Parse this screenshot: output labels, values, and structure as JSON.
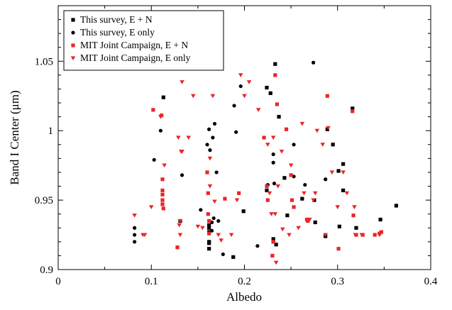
{
  "chart_data": {
    "type": "scatter",
    "title": "",
    "xlabel": "Albedo",
    "ylabel": "Band I Center (μm)",
    "xlim": [
      0,
      0.4
    ],
    "ylim": [
      0.9,
      1.09
    ],
    "x_ticks": [
      0,
      0.1,
      0.2,
      0.3,
      0.4
    ],
    "x_tick_labels": [
      "0",
      "0.1",
      "0.2",
      "0.3",
      "0.4"
    ],
    "y_ticks": [
      0.9,
      0.95,
      1.0,
      1.05
    ],
    "y_tick_labels": [
      "0.9",
      "0.95",
      "1",
      "1.05"
    ],
    "grid": false,
    "legend_position": "top-left",
    "series": [
      {
        "name": "This survey, E + N",
        "marker": "square",
        "color": "#000000",
        "points": [
          [
            0.113,
            1.024
          ],
          [
            0.131,
            0.935
          ],
          [
            0.162,
            0.932
          ],
          [
            0.162,
            0.93
          ],
          [
            0.162,
            0.927
          ],
          [
            0.162,
            0.92
          ],
          [
            0.162,
            0.919
          ],
          [
            0.162,
            0.915
          ],
          [
            0.188,
            0.909
          ],
          [
            0.199,
            0.942
          ],
          [
            0.224,
            1.031
          ],
          [
            0.224,
            0.957
          ],
          [
            0.228,
            1.027
          ],
          [
            0.231,
            0.922
          ],
          [
            0.231,
            0.92
          ],
          [
            0.233,
            1.048
          ],
          [
            0.234,
            0.918
          ],
          [
            0.237,
            1.01
          ],
          [
            0.243,
            0.966
          ],
          [
            0.246,
            0.939
          ],
          [
            0.262,
            0.951
          ],
          [
            0.275,
            0.95
          ],
          [
            0.276,
            0.934
          ],
          [
            0.287,
            0.924
          ],
          [
            0.289,
            1.001
          ],
          [
            0.295,
            0.99
          ],
          [
            0.301,
            0.971
          ],
          [
            0.302,
            0.931
          ],
          [
            0.306,
            0.976
          ],
          [
            0.306,
            0.957
          ],
          [
            0.316,
            1.016
          ],
          [
            0.32,
            0.93
          ],
          [
            0.346,
            0.936
          ],
          [
            0.363,
            0.946
          ]
        ]
      },
      {
        "name": "This survey, E only",
        "marker": "circle",
        "color": "#000000",
        "points": [
          [
            0.082,
            0.93
          ],
          [
            0.082,
            0.925
          ],
          [
            0.082,
            0.92
          ],
          [
            0.103,
            0.979
          ],
          [
            0.11,
            1.0
          ],
          [
            0.133,
            0.968
          ],
          [
            0.153,
            0.943
          ],
          [
            0.16,
            0.99
          ],
          [
            0.162,
            1.001
          ],
          [
            0.163,
            0.986
          ],
          [
            0.165,
            0.934
          ],
          [
            0.165,
            0.928
          ],
          [
            0.166,
            0.995
          ],
          [
            0.167,
            0.937
          ],
          [
            0.168,
            1.005
          ],
          [
            0.17,
            0.97
          ],
          [
            0.172,
            0.935
          ],
          [
            0.177,
            0.911
          ],
          [
            0.189,
            1.018
          ],
          [
            0.191,
            0.999
          ],
          [
            0.196,
            1.032
          ],
          [
            0.214,
            0.917
          ],
          [
            0.225,
            0.961
          ],
          [
            0.231,
            0.983
          ],
          [
            0.231,
            0.977
          ],
          [
            0.232,
            0.962
          ],
          [
            0.253,
            0.99
          ],
          [
            0.253,
            0.967
          ],
          [
            0.265,
            0.961
          ],
          [
            0.274,
            1.049
          ],
          [
            0.287,
            0.965
          ]
        ]
      },
      {
        "name": "MIT Joint Campaign, E + N",
        "marker": "square",
        "color": "#e8262a",
        "points": [
          [
            0.102,
            1.015
          ],
          [
            0.111,
            1.011
          ],
          [
            0.112,
            0.965
          ],
          [
            0.112,
            0.957
          ],
          [
            0.112,
            0.954
          ],
          [
            0.112,
            0.95
          ],
          [
            0.112,
            0.947
          ],
          [
            0.113,
            0.944
          ],
          [
            0.128,
            0.916
          ],
          [
            0.16,
            0.97
          ],
          [
            0.161,
            0.955
          ],
          [
            0.161,
            0.94
          ],
          [
            0.162,
            0.935
          ],
          [
            0.162,
            0.926
          ],
          [
            0.179,
            0.951
          ],
          [
            0.194,
            0.955
          ],
          [
            0.221,
            0.995
          ],
          [
            0.224,
            0.96
          ],
          [
            0.225,
            0.95
          ],
          [
            0.23,
            0.91
          ],
          [
            0.231,
            0.92
          ],
          [
            0.233,
            1.04
          ],
          [
            0.235,
            1.019
          ],
          [
            0.25,
            0.968
          ],
          [
            0.251,
            0.95
          ],
          [
            0.253,
            0.945
          ],
          [
            0.267,
            0.936
          ],
          [
            0.268,
            0.935
          ],
          [
            0.289,
            1.025
          ],
          [
            0.301,
            0.915
          ],
          [
            0.316,
            1.014
          ],
          [
            0.317,
            0.939
          ],
          [
            0.32,
            0.925
          ],
          [
            0.327,
            0.925
          ],
          [
            0.34,
            0.925
          ],
          [
            0.345,
            0.926
          ],
          [
            0.347,
            0.927
          ],
          [
            0.245,
            1.001
          ]
        ]
      },
      {
        "name": "MIT Joint Campaign, E only",
        "marker": "triangle-down",
        "color": "#e8262a",
        "points": [
          [
            0.082,
            0.939
          ],
          [
            0.091,
            0.925
          ],
          [
            0.093,
            0.925
          ],
          [
            0.1,
            0.945
          ],
          [
            0.11,
            1.01
          ],
          [
            0.114,
            0.975
          ],
          [
            0.129,
            0.995
          ],
          [
            0.13,
            0.932
          ],
          [
            0.131,
            0.935
          ],
          [
            0.131,
            0.925
          ],
          [
            0.132,
            0.985
          ],
          [
            0.133,
            0.985
          ],
          [
            0.133,
            1.035
          ],
          [
            0.14,
            0.995
          ],
          [
            0.145,
            1.025
          ],
          [
            0.15,
            0.931
          ],
          [
            0.155,
            0.93
          ],
          [
            0.163,
            0.98
          ],
          [
            0.163,
            0.96
          ],
          [
            0.166,
            1.025
          ],
          [
            0.168,
            0.949
          ],
          [
            0.172,
            0.925
          ],
          [
            0.175,
            0.921
          ],
          [
            0.186,
            0.925
          ],
          [
            0.192,
            0.95
          ],
          [
            0.196,
            1.04
          ],
          [
            0.2,
            1.025
          ],
          [
            0.205,
            1.035
          ],
          [
            0.215,
            1.015
          ],
          [
            0.225,
            0.99
          ],
          [
            0.227,
            0.955
          ],
          [
            0.229,
            0.94
          ],
          [
            0.231,
            0.995
          ],
          [
            0.233,
            0.94
          ],
          [
            0.234,
            0.905
          ],
          [
            0.236,
            0.96
          ],
          [
            0.24,
            0.985
          ],
          [
            0.241,
            0.929
          ],
          [
            0.248,
            0.925
          ],
          [
            0.25,
            0.975
          ],
          [
            0.258,
            0.93
          ],
          [
            0.262,
            1.005
          ],
          [
            0.264,
            0.955
          ],
          [
            0.27,
            0.936
          ],
          [
            0.274,
            0.95
          ],
          [
            0.276,
            0.955
          ],
          [
            0.278,
            1.0
          ],
          [
            0.284,
            0.99
          ],
          [
            0.287,
            0.925
          ],
          [
            0.29,
            1.002
          ],
          [
            0.294,
            0.97
          ],
          [
            0.3,
            0.945
          ],
          [
            0.306,
            0.97
          ],
          [
            0.31,
            0.955
          ],
          [
            0.318,
            0.945
          ],
          [
            0.319,
            0.925
          ],
          [
            0.326,
            0.925
          ],
          [
            0.345,
            0.925
          ]
        ]
      }
    ]
  }
}
